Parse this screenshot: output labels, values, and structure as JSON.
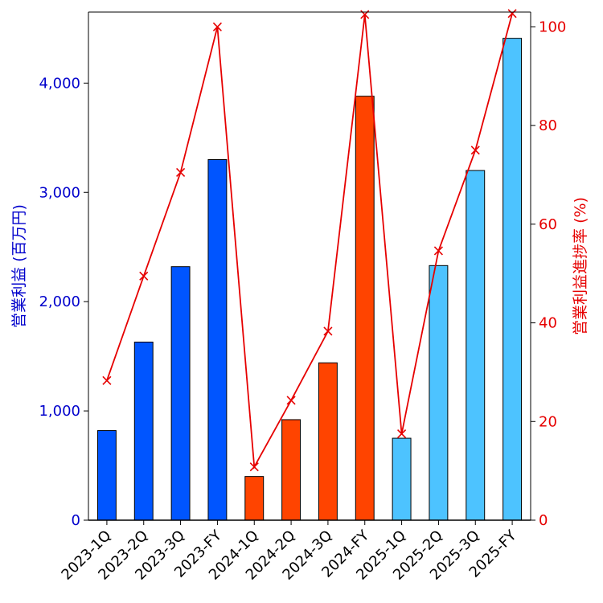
{
  "chart_data": {
    "type": "bar",
    "categories": [
      "2023-1Q",
      "2023-2Q",
      "2023-3Q",
      "2023-FY",
      "2024-1Q",
      "2024-2Q",
      "2024-3Q",
      "2024-FY",
      "2025-1Q",
      "2025-2Q",
      "2025-3Q",
      "2025-FY"
    ],
    "series": [
      {
        "name": "営業利益",
        "type": "bar",
        "axis": "left",
        "values": [
          820,
          1630,
          2320,
          3300,
          400,
          920,
          1440,
          3880,
          750,
          2330,
          3200,
          4410
        ],
        "colors": [
          "#0055ff",
          "#0055ff",
          "#0055ff",
          "#0055ff",
          "#ff4400",
          "#ff4400",
          "#ff4400",
          "#ff4400",
          "#4dc3ff",
          "#4dc3ff",
          "#4dc3ff",
          "#4dc3ff"
        ]
      },
      {
        "name": "営業利益進捗率",
        "type": "line",
        "axis": "right",
        "marker": "x",
        "color": "#e60000",
        "values": [
          28.3,
          49.5,
          70.5,
          100,
          10.8,
          24.3,
          38.3,
          102.5,
          17.5,
          54.6,
          75.0,
          102.7
        ]
      }
    ],
    "ylabel": "営業利益 (百万円)",
    "y2label": "営業利益進捗率 (%)",
    "ylim": [
      0,
      4650
    ],
    "y2lim": [
      0,
      103
    ],
    "yticks": [
      0,
      1000,
      2000,
      3000,
      4000
    ],
    "yticklabels": [
      "0",
      "1,000",
      "2,000",
      "3,000",
      "4,000"
    ],
    "y2ticks": [
      0,
      20,
      40,
      60,
      80,
      100
    ],
    "y2ticklabels": [
      "0",
      "20",
      "40",
      "60",
      "80",
      "100"
    ],
    "left_axis_color": "#0000cc",
    "right_axis_color": "#e60000",
    "grid": false
  }
}
